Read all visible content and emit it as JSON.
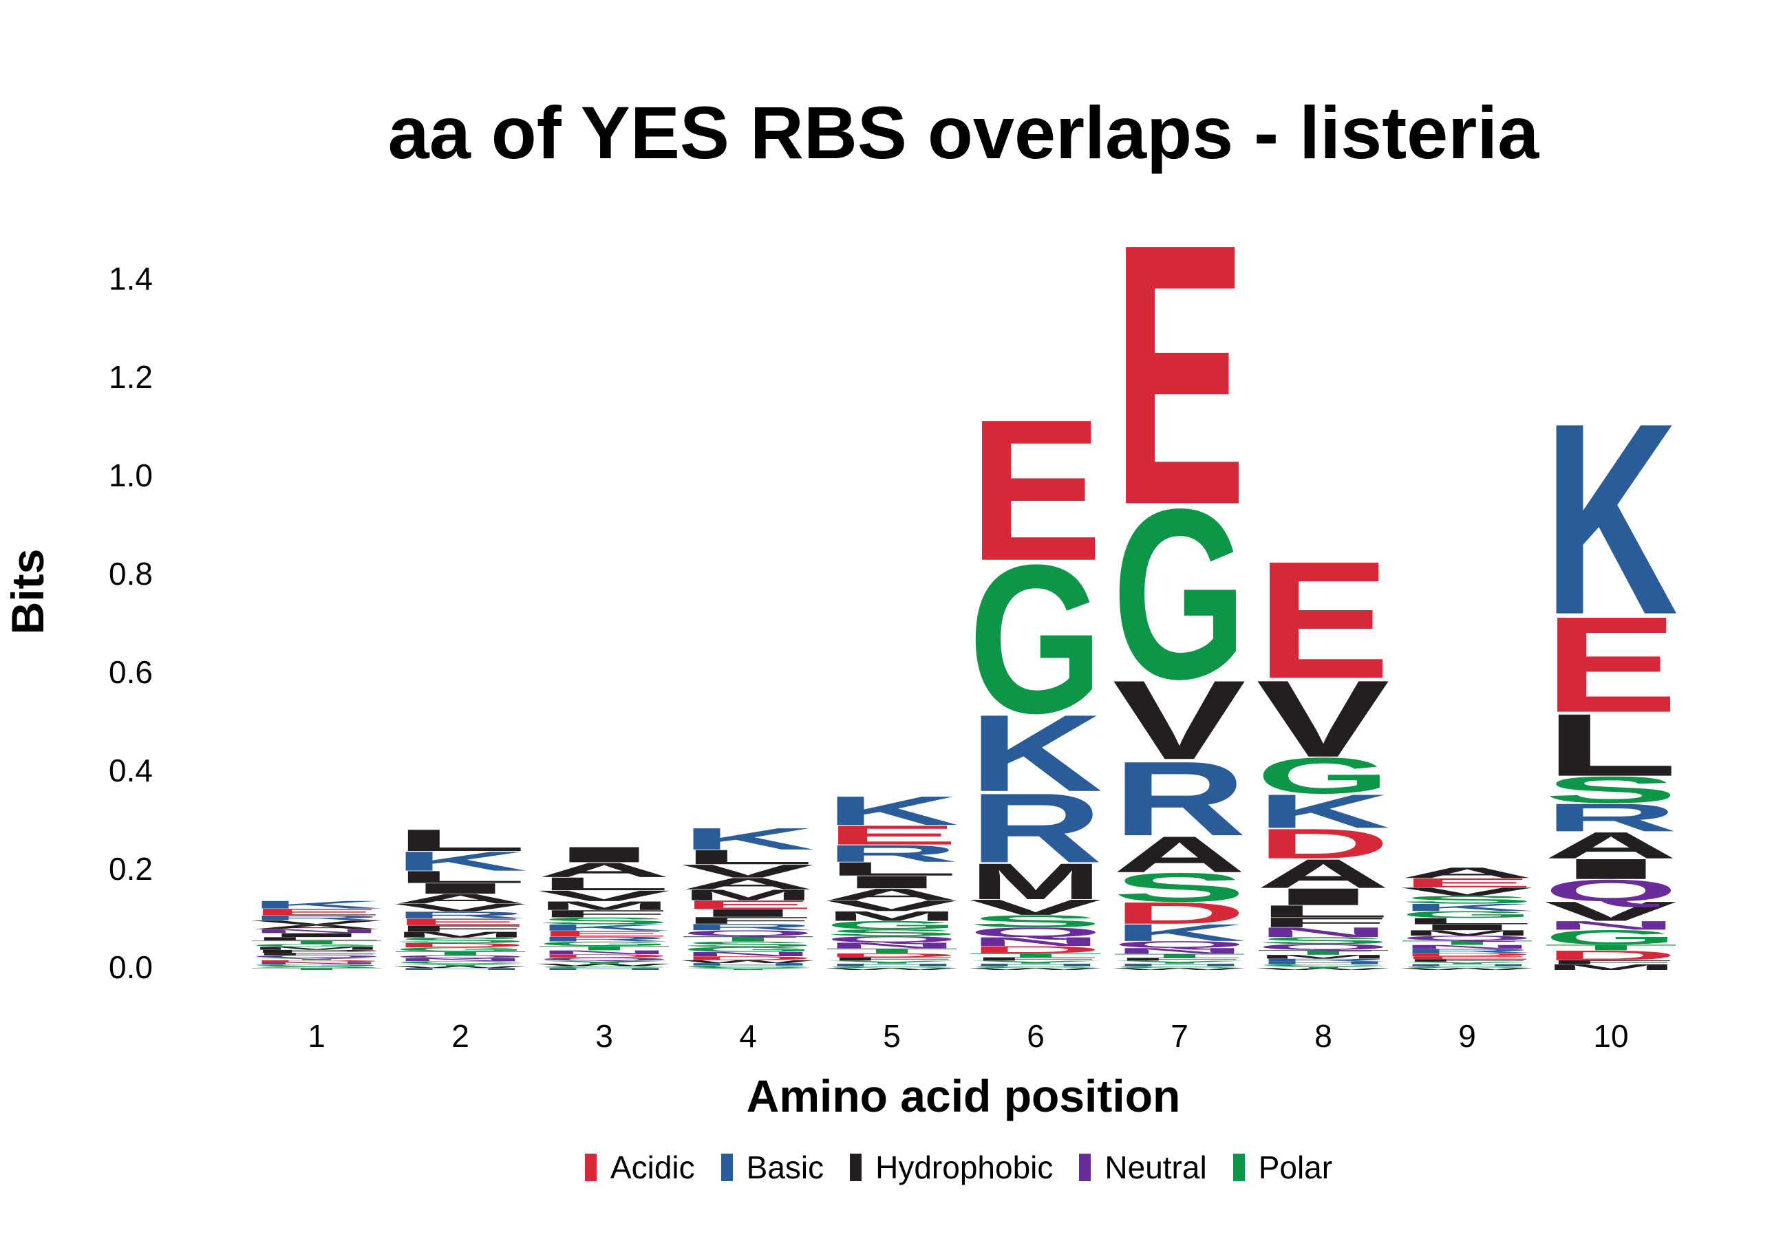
{
  "chart_data": {
    "type": "sequence-logo",
    "title": "aa of YES RBS overlaps - listeria",
    "xlabel": "Amino acid position",
    "ylabel": "Bits",
    "ylim": [
      0,
      1.5
    ],
    "yticks": [
      "0.0",
      "0.2",
      "0.4",
      "0.6",
      "0.8",
      "1.0",
      "1.2",
      "1.4"
    ],
    "color_scheme": {
      "Acidic": "#D62839",
      "Basic": "#2B5C9A",
      "Hydrophobic": "#231F20",
      "Neutral": "#6A2C9A",
      "Polar": "#0E9648"
    },
    "legend": [
      {
        "name": "Acidic",
        "color": "#D62839"
      },
      {
        "name": "Basic",
        "color": "#2B5C9A"
      },
      {
        "name": "Hydrophobic",
        "color": "#231F20"
      },
      {
        "name": "Neutral",
        "color": "#6A2C9A"
      },
      {
        "name": "Polar",
        "color": "#0E9648"
      }
    ],
    "letter_class": {
      "D": "Acidic",
      "E": "Acidic",
      "K": "Basic",
      "R": "Basic",
      "H": "Basic",
      "A": "Hydrophobic",
      "V": "Hydrophobic",
      "I": "Hydrophobic",
      "L": "Hydrophobic",
      "M": "Hydrophobic",
      "F": "Hydrophobic",
      "W": "Hydrophobic",
      "P": "Hydrophobic",
      "Q": "Neutral",
      "N": "Neutral",
      "S": "Polar",
      "G": "Polar",
      "T": "Polar",
      "Y": "Polar",
      "C": "Polar"
    },
    "positions": [
      {
        "x": "1",
        "letters": [
          [
            "T",
            0.004
          ],
          [
            "S",
            0.004
          ],
          [
            "G",
            0.004
          ],
          [
            "N",
            0.004
          ],
          [
            "D",
            0.004
          ],
          [
            "Y",
            0.005
          ],
          [
            "Q",
            0.005
          ],
          [
            "F",
            0.005
          ],
          [
            "P",
            0.006
          ],
          [
            "M",
            0.006
          ],
          [
            "G",
            0.006
          ],
          [
            "T",
            0.007
          ],
          [
            "L",
            0.007
          ],
          [
            "I",
            0.008
          ],
          [
            "N",
            0.008
          ],
          [
            "A",
            0.009
          ],
          [
            "V",
            0.009
          ],
          [
            "R",
            0.01
          ],
          [
            "E",
            0.014
          ],
          [
            "K",
            0.016
          ]
        ]
      },
      {
        "x": "2",
        "letters": [
          [
            "H",
            0.004
          ],
          [
            "W",
            0.004
          ],
          [
            "Y",
            0.005
          ],
          [
            "C",
            0.005
          ],
          [
            "N",
            0.006
          ],
          [
            "Q",
            0.006
          ],
          [
            "T",
            0.008
          ],
          [
            "G",
            0.008
          ],
          [
            "D",
            0.009
          ],
          [
            "S",
            0.011
          ],
          [
            "M",
            0.012
          ],
          [
            "F",
            0.013
          ],
          [
            "E",
            0.014
          ],
          [
            "R",
            0.014
          ],
          [
            "V",
            0.016
          ],
          [
            "A",
            0.02
          ],
          [
            "I",
            0.022
          ],
          [
            "L",
            0.025
          ],
          [
            "K",
            0.04
          ],
          [
            "L",
            0.045
          ]
        ]
      },
      {
        "x": "3",
        "letters": [
          [
            "H",
            0.004
          ],
          [
            "C",
            0.004
          ],
          [
            "W",
            0.005
          ],
          [
            "Y",
            0.006
          ],
          [
            "Q",
            0.006
          ],
          [
            "D",
            0.007
          ],
          [
            "N",
            0.008
          ],
          [
            "T",
            0.009
          ],
          [
            "G",
            0.009
          ],
          [
            "R",
            0.01
          ],
          [
            "E",
            0.012
          ],
          [
            "K",
            0.013
          ],
          [
            "S",
            0.014
          ],
          [
            "F",
            0.015
          ],
          [
            "M",
            0.018
          ],
          [
            "V",
            0.022
          ],
          [
            "L",
            0.027
          ],
          [
            "A",
            0.03
          ],
          [
            "I",
            0.032
          ]
        ]
      },
      {
        "x": "4",
        "letters": [
          [
            "Y",
            0.004
          ],
          [
            "C",
            0.005
          ],
          [
            "H",
            0.005
          ],
          [
            "W",
            0.006
          ],
          [
            "D",
            0.008
          ],
          [
            "N",
            0.009
          ],
          [
            "G",
            0.01
          ],
          [
            "S",
            0.011
          ],
          [
            "T",
            0.011
          ],
          [
            "Q",
            0.012
          ],
          [
            "R",
            0.013
          ],
          [
            "F",
            0.014
          ],
          [
            "I",
            0.016
          ],
          [
            "E",
            0.018
          ],
          [
            "M",
            0.022
          ],
          [
            "A",
            0.024
          ],
          [
            "V",
            0.027
          ],
          [
            "L",
            0.03
          ],
          [
            "K",
            0.045
          ]
        ]
      },
      {
        "x": "5",
        "letters": [
          [
            "W",
            0.004
          ],
          [
            "C",
            0.004
          ],
          [
            "H",
            0.005
          ],
          [
            "Y",
            0.006
          ],
          [
            "F",
            0.007
          ],
          [
            "D",
            0.008
          ],
          [
            "T",
            0.01
          ],
          [
            "N",
            0.012
          ],
          [
            "Q",
            0.013
          ],
          [
            "S",
            0.014
          ],
          [
            "G",
            0.017
          ],
          [
            "M",
            0.02
          ],
          [
            "V",
            0.022
          ],
          [
            "A",
            0.024
          ],
          [
            "I",
            0.026
          ],
          [
            "L",
            0.028
          ],
          [
            "R",
            0.035
          ],
          [
            "E",
            0.04
          ],
          [
            "K",
            0.06
          ]
        ]
      },
      {
        "x": "6",
        "letters": [
          [
            "W",
            0.004
          ],
          [
            "C",
            0.004
          ],
          [
            "H",
            0.005
          ],
          [
            "Y",
            0.006
          ],
          [
            "F",
            0.007
          ],
          [
            "T",
            0.008
          ],
          [
            "D",
            0.015
          ],
          [
            "N",
            0.018
          ],
          [
            "Q",
            0.02
          ],
          [
            "S",
            0.025
          ],
          [
            "V",
            0.032
          ],
          [
            "M",
            0.075
          ],
          [
            "R",
            0.145
          ],
          [
            "K",
            0.16
          ],
          [
            "G",
            0.31
          ],
          [
            "E",
            0.295
          ]
        ]
      },
      {
        "x": "7",
        "letters": [
          [
            "W",
            0.004
          ],
          [
            "C",
            0.004
          ],
          [
            "H",
            0.005
          ],
          [
            "Y",
            0.006
          ],
          [
            "F",
            0.006
          ],
          [
            "T",
            0.008
          ],
          [
            "N",
            0.012
          ],
          [
            "Q",
            0.014
          ],
          [
            "K",
            0.035
          ],
          [
            "D",
            0.045
          ],
          [
            "S",
            0.06
          ],
          [
            "A",
            0.075
          ],
          [
            "R",
            0.155
          ],
          [
            "V",
            0.165
          ],
          [
            "G",
            0.355
          ],
          [
            "E",
            0.545
          ]
        ]
      },
      {
        "x": "8",
        "letters": [
          [
            "W",
            0.004
          ],
          [
            "Y",
            0.004
          ],
          [
            "C",
            0.004
          ],
          [
            "H",
            0.005
          ],
          [
            "R",
            0.006
          ],
          [
            "M",
            0.008
          ],
          [
            "T",
            0.01
          ],
          [
            "Q",
            0.012
          ],
          [
            "S",
            0.014
          ],
          [
            "N",
            0.02
          ],
          [
            "F",
            0.02
          ],
          [
            "L",
            0.025
          ],
          [
            "I",
            0.035
          ],
          [
            "A",
            0.06
          ],
          [
            "D",
            0.062
          ],
          [
            "K",
            0.07
          ],
          [
            "G",
            0.075
          ],
          [
            "V",
            0.16
          ],
          [
            "E",
            0.245
          ]
        ]
      },
      {
        "x": "9",
        "letters": [
          [
            "W",
            0.004
          ],
          [
            "C",
            0.004
          ],
          [
            "H",
            0.004
          ],
          [
            "Y",
            0.005
          ],
          [
            "F",
            0.005
          ],
          [
            "E",
            0.006
          ],
          [
            "D",
            0.007
          ],
          [
            "R",
            0.008
          ],
          [
            "N",
            0.008
          ],
          [
            "T",
            0.009
          ],
          [
            "Q",
            0.01
          ],
          [
            "M",
            0.011
          ],
          [
            "I",
            0.012
          ],
          [
            "L",
            0.013
          ],
          [
            "G",
            0.014
          ],
          [
            "K",
            0.015
          ],
          [
            "S",
            0.016
          ],
          [
            "V",
            0.017
          ],
          [
            "E",
            0.019
          ],
          [
            "A",
            0.022
          ]
        ]
      },
      {
        "x": "10",
        "letters": [
          [
            "M",
            0.012
          ],
          [
            "F",
            0.008
          ],
          [
            "D",
            0.02
          ],
          [
            "T",
            0.012
          ],
          [
            "G",
            0.03
          ],
          [
            "N",
            0.018
          ],
          [
            "V",
            0.04
          ],
          [
            "Q",
            0.045
          ],
          [
            "I",
            0.042
          ],
          [
            "A",
            0.055
          ],
          [
            "R",
            0.058
          ],
          [
            "S",
            0.055
          ],
          [
            "L",
            0.13
          ],
          [
            "E",
            0.2
          ],
          [
            "K",
            0.4
          ]
        ]
      }
    ]
  }
}
